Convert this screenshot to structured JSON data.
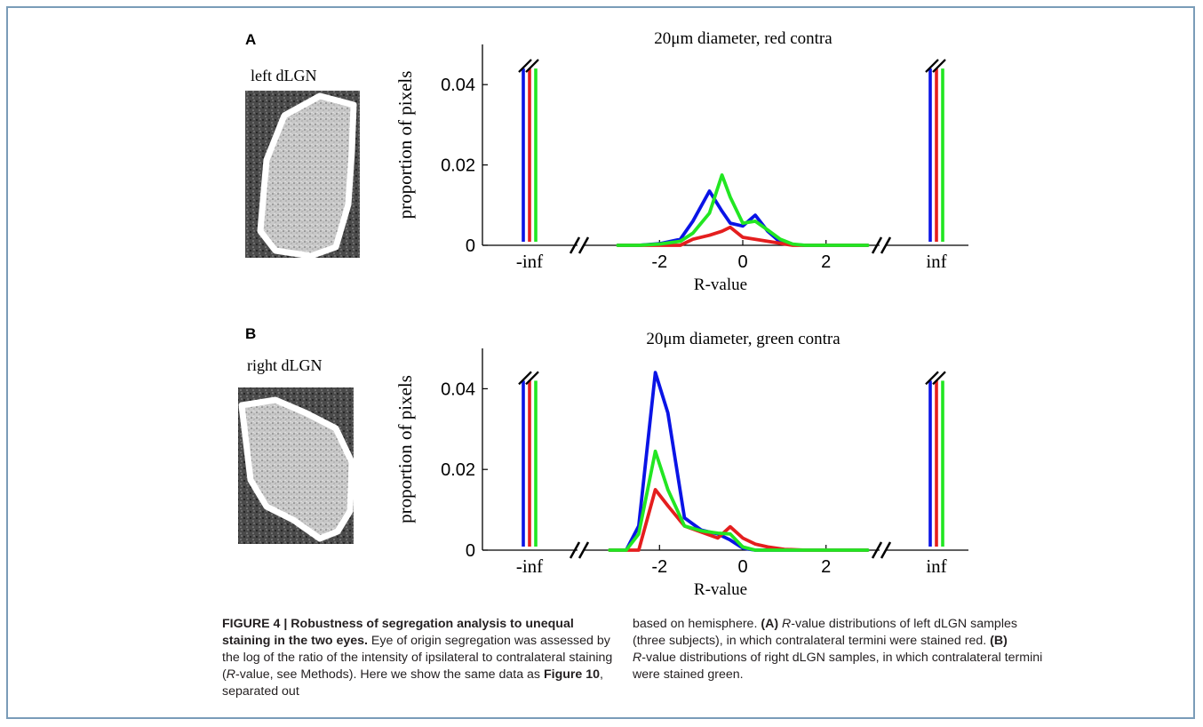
{
  "panels": [
    {
      "letter": "A",
      "title": "20μm diameter, red contra",
      "image_label": "left dLGN",
      "ylabel": "proportion of pixels",
      "xlabel": "R-value"
    },
    {
      "letter": "B",
      "title": "20μm diameter, green contra",
      "image_label": "right dLGN",
      "ylabel": "proportion of pixels",
      "xlabel": "R-value"
    }
  ],
  "caption": {
    "fig_label": "FIGURE 4 | Robustness of segregation analysis to unequal staining in the two eyes.",
    "text1": " Eye of origin segregation was assessed by the log of the ratio of the intensity of ipsilateral to contralateral staining (",
    "r1": "R",
    "text2": "-value, see Methods). Here we show the same data as ",
    "fig_ref": "Figure 10",
    "text3": ", separated out based on hemisphere. ",
    "lab_a": "(A)",
    "r2": "R",
    "text4": "-value distributions of left dLGN samples (three subjects), in which contralateral termini were stained red. ",
    "lab_b": "(B)",
    "r3": "R",
    "text5": "-value distributions of right dLGN samples, in which contralateral termini were stained green."
  },
  "colors": {
    "blue": "#0a14e6",
    "red": "#e41e1e",
    "green": "#22e622",
    "axis": "#000000"
  },
  "chart_data": [
    {
      "type": "line",
      "title": "20μm diameter, red contra",
      "xlabel": "R-value",
      "ylabel": "proportion of pixels",
      "xlim": [
        -3.5,
        3.5
      ],
      "ylim": [
        0,
        0.05
      ],
      "yticks": [
        0,
        0.02,
        0.04
      ],
      "ytick_labels": [
        "0",
        "0.02",
        "0.04"
      ],
      "xticks": [
        -2,
        0,
        2
      ],
      "xtick_labels": [
        "-2",
        "0",
        "2"
      ],
      "outer_ticks": [
        "-inf",
        "inf"
      ],
      "inf_bars": {
        "blue": 0.044,
        "red": 0.044,
        "green": 0.044,
        "broken": true
      },
      "series": [
        {
          "color": "blue",
          "x": [
            -3.0,
            -2.5,
            -2.0,
            -1.5,
            -1.2,
            -0.8,
            -0.5,
            -0.3,
            0.0,
            0.3,
            0.6,
            0.9,
            1.2,
            1.5,
            2.0,
            2.5,
            3.0
          ],
          "y": [
            0.0,
            0.0,
            0.0004,
            0.0015,
            0.006,
            0.0135,
            0.0085,
            0.0055,
            0.0048,
            0.0075,
            0.0035,
            0.0008,
            0.0002,
            0.0,
            0.0,
            0.0,
            0.0
          ]
        },
        {
          "color": "red",
          "x": [
            -3.0,
            -2.5,
            -2.0,
            -1.5,
            -1.2,
            -0.8,
            -0.5,
            -0.3,
            0.0,
            0.3,
            0.6,
            0.9,
            1.2,
            1.5,
            2.0,
            2.5,
            3.0
          ],
          "y": [
            0.0,
            0.0,
            0.0,
            0.0,
            0.0015,
            0.0025,
            0.0035,
            0.0045,
            0.002,
            0.0015,
            0.001,
            0.0005,
            0.0,
            0.0,
            0.0,
            0.0,
            0.0
          ]
        },
        {
          "color": "green",
          "x": [
            -3.0,
            -2.5,
            -2.0,
            -1.5,
            -1.2,
            -0.8,
            -0.5,
            -0.3,
            0.0,
            0.3,
            0.6,
            0.9,
            1.2,
            1.5,
            2.0,
            2.5,
            3.0
          ],
          "y": [
            0.0,
            0.0,
            0.0003,
            0.001,
            0.003,
            0.008,
            0.0175,
            0.012,
            0.0055,
            0.006,
            0.0038,
            0.0015,
            0.0003,
            0.0,
            0.0,
            0.0,
            0.0
          ]
        }
      ]
    },
    {
      "type": "line",
      "title": "20μm diameter, green contra",
      "xlabel": "R-value",
      "ylabel": "proportion of pixels",
      "xlim": [
        -3.5,
        3.5
      ],
      "ylim": [
        0,
        0.05
      ],
      "yticks": [
        0,
        0.02,
        0.04
      ],
      "ytick_labels": [
        "0",
        "0.02",
        "0.04"
      ],
      "xticks": [
        -2,
        0,
        2
      ],
      "xtick_labels": [
        "-2",
        "0",
        "2"
      ],
      "outer_ticks": [
        "-inf",
        "inf"
      ],
      "inf_bars": {
        "blue": 0.042,
        "red": 0.042,
        "green": 0.042,
        "broken": true
      },
      "series": [
        {
          "color": "blue",
          "x": [
            -3.2,
            -2.8,
            -2.5,
            -2.1,
            -1.8,
            -1.4,
            -1.0,
            -0.6,
            -0.3,
            0.0,
            0.3,
            0.6,
            1.0,
            1.5,
            2.0,
            2.5,
            3.0
          ],
          "y": [
            0.0,
            0.0,
            0.006,
            0.044,
            0.034,
            0.008,
            0.005,
            0.004,
            0.0025,
            0.0005,
            0.0,
            0.0,
            0.0,
            0.0,
            0.0,
            0.0,
            0.0
          ]
        },
        {
          "color": "red",
          "x": [
            -3.2,
            -2.8,
            -2.5,
            -2.1,
            -1.8,
            -1.4,
            -1.0,
            -0.6,
            -0.3,
            0.0,
            0.3,
            0.6,
            1.0,
            1.5,
            2.0,
            2.5,
            3.0
          ],
          "y": [
            0.0,
            0.0,
            0.0,
            0.015,
            0.011,
            0.006,
            0.0045,
            0.003,
            0.0058,
            0.003,
            0.0015,
            0.0008,
            0.0002,
            0.0,
            0.0,
            0.0,
            0.0
          ]
        },
        {
          "color": "green",
          "x": [
            -3.2,
            -2.8,
            -2.5,
            -2.1,
            -1.8,
            -1.4,
            -1.0,
            -0.6,
            -0.3,
            0.0,
            0.3,
            0.6,
            1.0,
            1.5,
            2.0,
            2.5,
            3.0
          ],
          "y": [
            0.0,
            0.0,
            0.004,
            0.0245,
            0.015,
            0.006,
            0.0048,
            0.0042,
            0.004,
            0.0008,
            0.0,
            0.0,
            0.0,
            0.0,
            0.0,
            0.0,
            0.0
          ]
        }
      ]
    }
  ]
}
